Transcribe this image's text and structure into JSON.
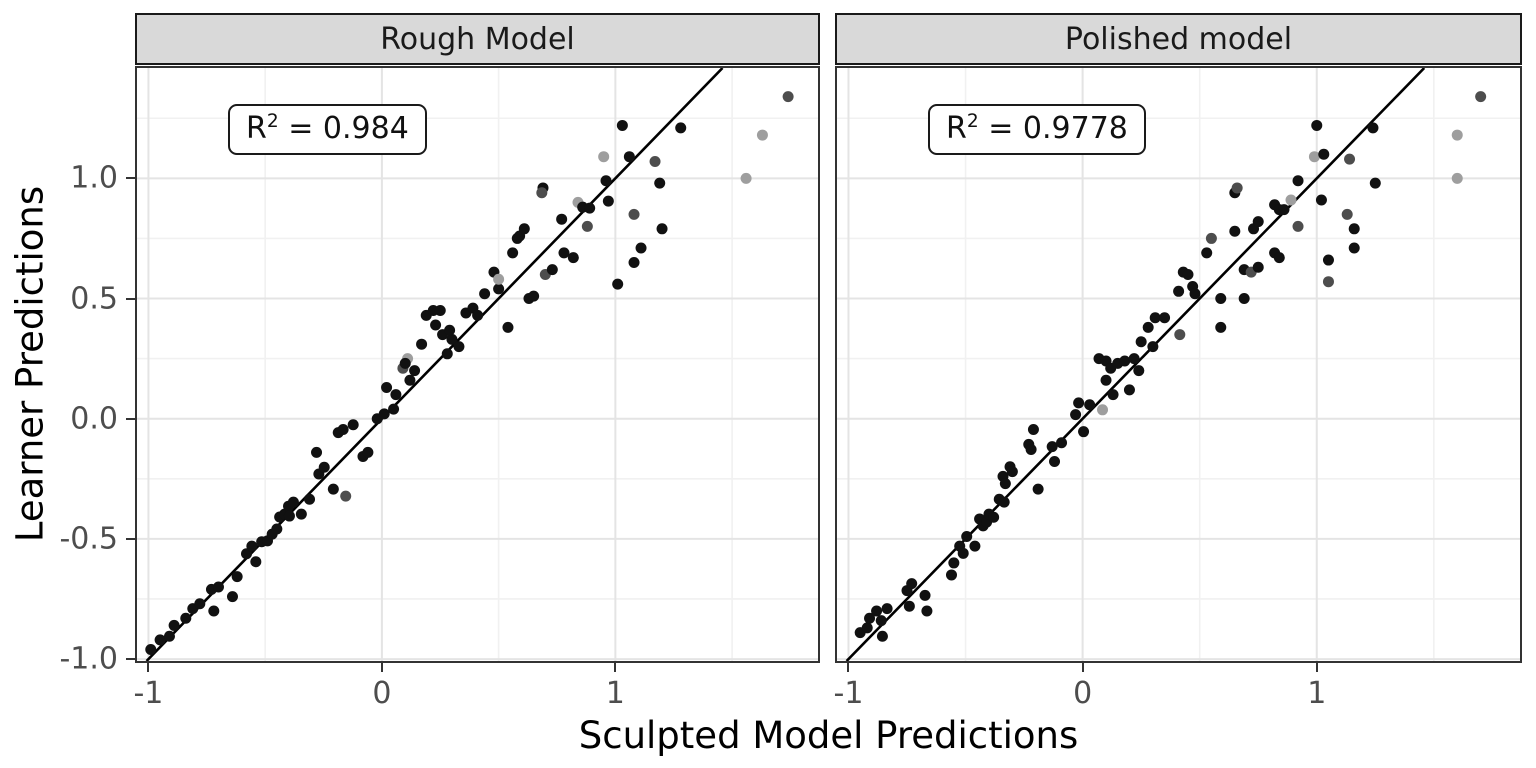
{
  "figure": {
    "x_axis_title": "Sculpted Model Predictions",
    "y_axis_title": "Learner Predictions",
    "xlim": [
      -1.049,
      1.868
    ],
    "ylim": [
      -1.008,
      1.459
    ],
    "x_ticks": {
      "values": [
        -1,
        0,
        1
      ],
      "labels": [
        "-1",
        "0",
        "1"
      ]
    },
    "y_ticks": {
      "values": [
        1.0,
        0.5,
        0.0,
        -0.5,
        -1.0
      ],
      "labels": [
        "1.0",
        "0.5",
        "0.0",
        "-0.5",
        "-1.0"
      ]
    },
    "x_minor": [
      -0.5,
      0.5,
      1.5
    ],
    "y_minor": [
      1.25,
      0.75,
      0.25,
      -0.25,
      -0.75
    ],
    "grid": true,
    "legend": "none"
  },
  "colors": {
    "point_black": "#111111",
    "point_dim": "#4d4d4d",
    "point_light": "#9e9e9e",
    "strip_bg": "#d9d9d9",
    "panel_border": "#333333",
    "grid_major": "#e4e4e4",
    "grid_minor": "#f1f1f1",
    "tick_label": "#4d4d4d",
    "identity_line": "#000000"
  },
  "chart_data": [
    {
      "type": "scatter",
      "facet": "Rough Model",
      "r_squared": 0.984,
      "annotation": {
        "r": "R",
        "sup": "2",
        "value": " = 0.984"
      },
      "xlabel": "Sculpted Model Predictions",
      "ylabel": "Learner Predictions",
      "xlim": [
        -1.049,
        1.868
      ],
      "ylim": [
        -1.008,
        1.459
      ],
      "identity_line": true,
      "points": [
        [
          -0.99,
          -0.96,
          "b"
        ],
        [
          -0.95,
          -0.92,
          "b"
        ],
        [
          -0.91,
          -0.905,
          "b"
        ],
        [
          -0.89,
          -0.86,
          "b"
        ],
        [
          -0.84,
          -0.83,
          "b"
        ],
        [
          -0.81,
          -0.79,
          "b"
        ],
        [
          -0.78,
          -0.77,
          "b"
        ],
        [
          -0.73,
          -0.71,
          "b"
        ],
        [
          -0.72,
          -0.8,
          "b"
        ],
        [
          -0.7,
          -0.7,
          "b"
        ],
        [
          -0.64,
          -0.74,
          "b"
        ],
        [
          -0.62,
          -0.657,
          "b"
        ],
        [
          -0.58,
          -0.562,
          "b"
        ],
        [
          -0.557,
          -0.53,
          "b"
        ],
        [
          -0.54,
          -0.595,
          "b"
        ],
        [
          -0.515,
          -0.512,
          "b"
        ],
        [
          -0.49,
          -0.508,
          "b"
        ],
        [
          -0.47,
          -0.48,
          "b"
        ],
        [
          -0.45,
          -0.459,
          "b"
        ],
        [
          -0.438,
          -0.409,
          "b"
        ],
        [
          -0.417,
          -0.397,
          "b"
        ],
        [
          -0.4,
          -0.364,
          "b"
        ],
        [
          -0.396,
          -0.405,
          "b"
        ],
        [
          -0.379,
          -0.347,
          "b"
        ],
        [
          -0.345,
          -0.397,
          "b"
        ],
        [
          -0.31,
          -0.335,
          "b"
        ],
        [
          -0.28,
          -0.14,
          "b"
        ],
        [
          -0.27,
          -0.23,
          "b"
        ],
        [
          -0.247,
          -0.202,
          "b"
        ],
        [
          -0.208,
          -0.293,
          "b"
        ],
        [
          -0.187,
          -0.058,
          "b"
        ],
        [
          -0.166,
          -0.045,
          "b"
        ],
        [
          -0.155,
          -0.322,
          "d"
        ],
        [
          -0.123,
          -0.025,
          "b"
        ],
        [
          -0.081,
          -0.157,
          "b"
        ],
        [
          -0.06,
          -0.14,
          "b"
        ],
        [
          -0.02,
          0.0,
          "b"
        ],
        [
          0.01,
          0.02,
          "b"
        ],
        [
          0.05,
          0.04,
          "b"
        ],
        [
          0.06,
          0.1,
          "b"
        ],
        [
          0.02,
          0.13,
          "b"
        ],
        [
          0.09,
          0.21,
          "d"
        ],
        [
          0.11,
          0.25,
          "l"
        ],
        [
          0.1,
          0.23,
          "b"
        ],
        [
          0.12,
          0.16,
          "b"
        ],
        [
          0.14,
          0.2,
          "b"
        ],
        [
          0.17,
          0.31,
          "b"
        ],
        [
          0.19,
          0.43,
          "b"
        ],
        [
          0.22,
          0.45,
          "b"
        ],
        [
          0.23,
          0.39,
          "b"
        ],
        [
          0.25,
          0.45,
          "b"
        ],
        [
          0.26,
          0.35,
          "b"
        ],
        [
          0.28,
          0.27,
          "b"
        ],
        [
          0.3,
          0.33,
          "b"
        ],
        [
          0.33,
          0.3,
          "b"
        ],
        [
          0.29,
          0.368,
          "b"
        ],
        [
          0.36,
          0.44,
          "b"
        ],
        [
          0.39,
          0.46,
          "b"
        ],
        [
          0.41,
          0.43,
          "b"
        ],
        [
          0.44,
          0.52,
          "b"
        ],
        [
          0.48,
          0.61,
          "b"
        ],
        [
          0.5,
          0.54,
          "b"
        ],
        [
          0.5,
          0.58,
          "l"
        ],
        [
          0.54,
          0.38,
          "b"
        ],
        [
          0.56,
          0.69,
          "b"
        ],
        [
          0.58,
          0.75,
          "b"
        ],
        [
          0.59,
          0.76,
          "b"
        ],
        [
          0.61,
          0.79,
          "b"
        ],
        [
          0.63,
          0.5,
          "b"
        ],
        [
          0.65,
          0.51,
          "b"
        ],
        [
          0.69,
          0.96,
          "b"
        ],
        [
          0.685,
          0.94,
          "d"
        ],
        [
          0.7,
          0.6,
          "d"
        ],
        [
          0.73,
          0.62,
          "b"
        ],
        [
          0.77,
          0.83,
          "b"
        ],
        [
          0.78,
          0.69,
          "b"
        ],
        [
          0.82,
          0.67,
          "b"
        ],
        [
          0.84,
          0.9,
          "l"
        ],
        [
          0.86,
          0.88,
          "b"
        ],
        [
          0.89,
          0.876,
          "b"
        ],
        [
          0.88,
          0.8,
          "d"
        ],
        [
          0.95,
          1.09,
          "l"
        ],
        [
          0.96,
          0.99,
          "b"
        ],
        [
          0.97,
          0.905,
          "b"
        ],
        [
          1.01,
          0.56,
          "b"
        ],
        [
          1.03,
          1.22,
          "b"
        ],
        [
          1.06,
          1.09,
          "b"
        ],
        [
          1.08,
          0.85,
          "d"
        ],
        [
          1.08,
          0.65,
          "b"
        ],
        [
          1.11,
          0.71,
          "b"
        ],
        [
          1.17,
          1.07,
          "d"
        ],
        [
          1.19,
          0.98,
          "b"
        ],
        [
          1.2,
          0.79,
          "b"
        ],
        [
          1.28,
          1.21,
          "b"
        ],
        [
          1.56,
          1.0,
          "l"
        ],
        [
          1.63,
          1.18,
          "l"
        ],
        [
          1.74,
          1.34,
          "d"
        ]
      ]
    },
    {
      "type": "scatter",
      "facet": "Polished model",
      "r_squared": 0.9778,
      "annotation": {
        "r": "R",
        "sup": "2",
        "value": " = 0.9778"
      },
      "xlabel": "Sculpted Model Predictions",
      "ylabel": "Learner Predictions",
      "xlim": [
        -1.049,
        1.868
      ],
      "ylim": [
        -1.008,
        1.459
      ],
      "identity_line": true,
      "points": [
        [
          -0.95,
          -0.89,
          "b"
        ],
        [
          -0.92,
          -0.87,
          "b"
        ],
        [
          -0.91,
          -0.83,
          "b"
        ],
        [
          -0.88,
          -0.8,
          "b"
        ],
        [
          -0.86,
          -0.84,
          "b"
        ],
        [
          -0.855,
          -0.905,
          "b"
        ],
        [
          -0.835,
          -0.79,
          "b"
        ],
        [
          -0.75,
          -0.715,
          "b"
        ],
        [
          -0.74,
          -0.78,
          "b"
        ],
        [
          -0.73,
          -0.686,
          "b"
        ],
        [
          -0.673,
          -0.735,
          "b"
        ],
        [
          -0.665,
          -0.8,
          "b"
        ],
        [
          -0.56,
          -0.65,
          "b"
        ],
        [
          -0.55,
          -0.6,
          "b"
        ],
        [
          -0.525,
          -0.53,
          "b"
        ],
        [
          -0.51,
          -0.56,
          "b"
        ],
        [
          -0.495,
          -0.49,
          "b"
        ],
        [
          -0.46,
          -0.53,
          "b"
        ],
        [
          -0.44,
          -0.417,
          "b"
        ],
        [
          -0.425,
          -0.446,
          "b"
        ],
        [
          -0.41,
          -0.43,
          "b"
        ],
        [
          -0.4,
          -0.397,
          "b"
        ],
        [
          -0.38,
          -0.41,
          "b"
        ],
        [
          -0.356,
          -0.335,
          "b"
        ],
        [
          -0.335,
          -0.347,
          "b"
        ],
        [
          -0.34,
          -0.24,
          "b"
        ],
        [
          -0.33,
          -0.27,
          "b"
        ],
        [
          -0.31,
          -0.2,
          "b"
        ],
        [
          -0.3,
          -0.22,
          "b"
        ],
        [
          -0.23,
          -0.107,
          "b"
        ],
        [
          -0.22,
          -0.128,
          "b"
        ],
        [
          -0.21,
          -0.045,
          "b"
        ],
        [
          -0.19,
          -0.293,
          "b"
        ],
        [
          -0.13,
          -0.116,
          "b"
        ],
        [
          -0.12,
          -0.178,
          "b"
        ],
        [
          -0.09,
          -0.1,
          "b"
        ],
        [
          -0.03,
          0.017,
          "b"
        ],
        [
          -0.017,
          0.066,
          "b"
        ],
        [
          0.004,
          -0.054,
          "b"
        ],
        [
          0.03,
          0.058,
          "b"
        ],
        [
          0.085,
          0.037,
          "l"
        ],
        [
          0.07,
          0.25,
          "b"
        ],
        [
          0.1,
          0.24,
          "b"
        ],
        [
          0.1,
          0.16,
          "b"
        ],
        [
          0.12,
          0.21,
          "b"
        ],
        [
          0.13,
          0.1,
          "b"
        ],
        [
          0.15,
          0.23,
          "b"
        ],
        [
          0.18,
          0.24,
          "b"
        ],
        [
          0.2,
          0.12,
          "b"
        ],
        [
          0.22,
          0.25,
          "b"
        ],
        [
          0.24,
          0.2,
          "b"
        ],
        [
          0.25,
          0.32,
          "b"
        ],
        [
          0.28,
          0.38,
          "b"
        ],
        [
          0.3,
          0.3,
          "b"
        ],
        [
          0.31,
          0.42,
          "b"
        ],
        [
          0.35,
          0.42,
          "b"
        ],
        [
          0.41,
          0.53,
          "b"
        ],
        [
          0.415,
          0.35,
          "d"
        ],
        [
          0.43,
          0.61,
          "b"
        ],
        [
          0.45,
          0.6,
          "b"
        ],
        [
          0.47,
          0.55,
          "b"
        ],
        [
          0.48,
          0.52,
          "b"
        ],
        [
          0.53,
          0.69,
          "b"
        ],
        [
          0.55,
          0.75,
          "d"
        ],
        [
          0.59,
          0.5,
          "b"
        ],
        [
          0.59,
          0.38,
          "b"
        ],
        [
          0.65,
          0.94,
          "b"
        ],
        [
          0.66,
          0.96,
          "d"
        ],
        [
          0.65,
          0.78,
          "b"
        ],
        [
          0.69,
          0.62,
          "b"
        ],
        [
          0.69,
          0.5,
          "b"
        ],
        [
          0.72,
          0.61,
          "d"
        ],
        [
          0.73,
          0.79,
          "b"
        ],
        [
          0.75,
          0.82,
          "b"
        ],
        [
          0.75,
          0.63,
          "b"
        ],
        [
          0.82,
          0.89,
          "b"
        ],
        [
          0.82,
          0.69,
          "b"
        ],
        [
          0.84,
          0.87,
          "b"
        ],
        [
          0.84,
          0.67,
          "b"
        ],
        [
          0.86,
          0.87,
          "b"
        ],
        [
          0.89,
          0.91,
          "l"
        ],
        [
          0.92,
          0.99,
          "b"
        ],
        [
          0.92,
          0.8,
          "d"
        ],
        [
          0.99,
          1.09,
          "l"
        ],
        [
          1.0,
          1.22,
          "b"
        ],
        [
          1.02,
          0.91,
          "b"
        ],
        [
          1.03,
          1.1,
          "b"
        ],
        [
          1.05,
          0.66,
          "b"
        ],
        [
          1.05,
          0.57,
          "d"
        ],
        [
          1.13,
          0.85,
          "d"
        ],
        [
          1.14,
          1.08,
          "d"
        ],
        [
          1.16,
          0.79,
          "b"
        ],
        [
          1.16,
          0.71,
          "b"
        ],
        [
          1.24,
          1.21,
          "b"
        ],
        [
          1.25,
          0.98,
          "b"
        ],
        [
          1.6,
          1.18,
          "l"
        ],
        [
          1.6,
          1.0,
          "l"
        ],
        [
          1.7,
          1.34,
          "d"
        ]
      ]
    }
  ]
}
